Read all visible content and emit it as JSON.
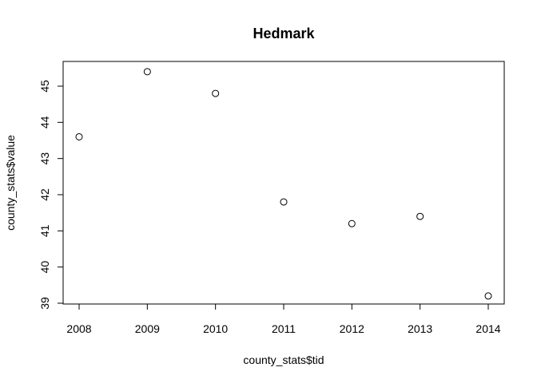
{
  "chart_data": {
    "type": "scatter",
    "title": "Hedmark",
    "xlabel": "county_stats$tid",
    "ylabel": "county_stats$value",
    "x": [
      2008,
      2009,
      2010,
      2011,
      2012,
      2013,
      2014
    ],
    "y": [
      43.6,
      45.4,
      44.8,
      41.8,
      41.2,
      41.4,
      39.2
    ],
    "xlim": [
      2008,
      2014
    ],
    "ylim": [
      39,
      45
    ],
    "x_ticks": [
      "2008",
      "2009",
      "2010",
      "2011",
      "2012",
      "2013",
      "2014"
    ],
    "y_ticks": [
      "39",
      "40",
      "41",
      "42",
      "43",
      "44",
      "45"
    ],
    "grid": false,
    "marker": "open-circle"
  }
}
